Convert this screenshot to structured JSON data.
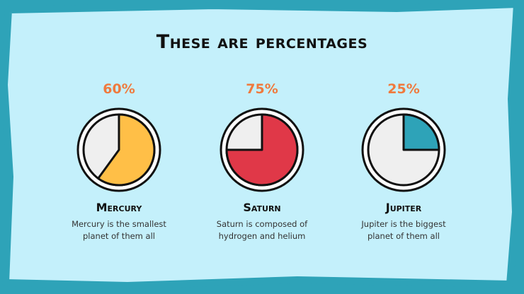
{
  "slide": {
    "title": "These are percentages",
    "colors": {
      "background": "#c4f0fb",
      "frame": "#2ea3b8",
      "percent_text": "#ef7a3e",
      "pie_track": "#efefef",
      "outline": "#111111"
    }
  },
  "chart_data": [
    {
      "type": "pie",
      "title": "",
      "value_label": "60%",
      "values": [
        60,
        40
      ],
      "fill_color": "#ffbf47",
      "name": "Mercury",
      "description_lines": [
        "Mercury is the smallest",
        "planet of them all"
      ]
    },
    {
      "type": "pie",
      "title": "",
      "value_label": "75%",
      "values": [
        75,
        25
      ],
      "fill_color": "#e03848",
      "name": "Saturn",
      "description_lines": [
        "Saturn is composed of",
        "hydrogen and helium"
      ]
    },
    {
      "type": "pie",
      "title": "",
      "value_label": "25%",
      "values": [
        25,
        75
      ],
      "fill_color": "#2ea3b8",
      "name": "Jupiter",
      "description_lines": [
        "Jupiter is the biggest",
        "planet of them all"
      ]
    }
  ]
}
